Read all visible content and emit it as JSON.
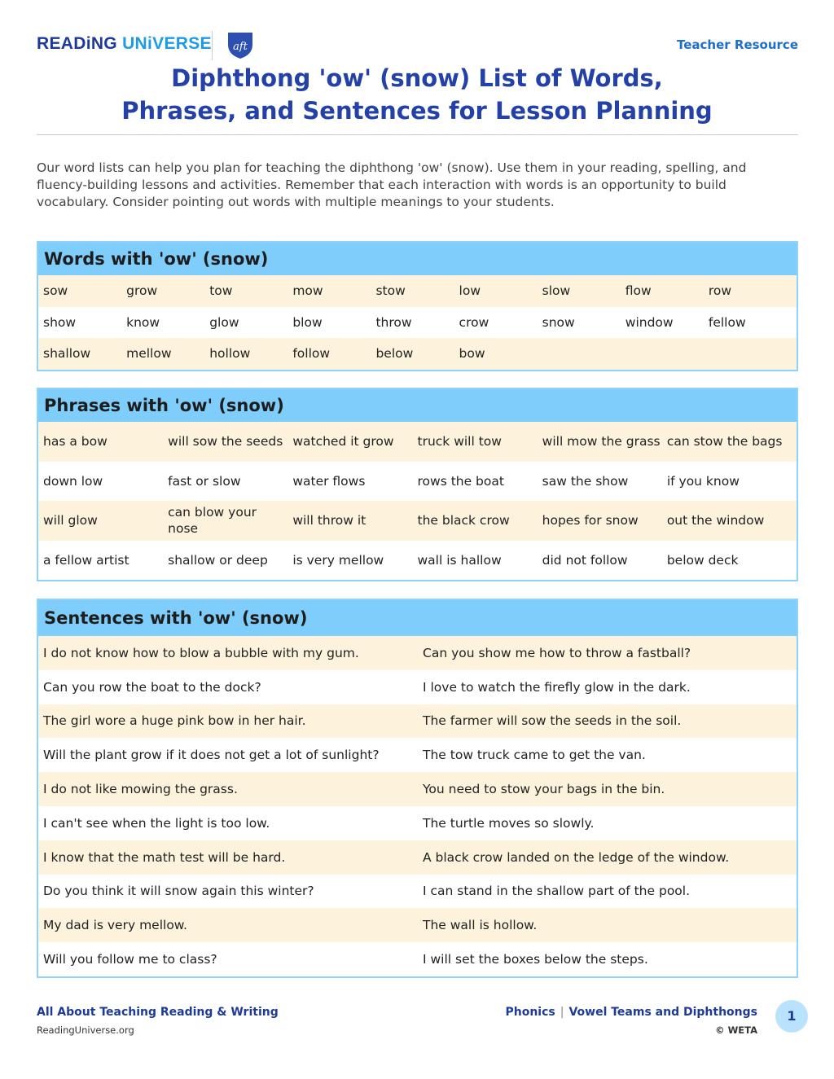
{
  "header": {
    "logo_part1": "READiNG",
    "logo_part2": "UNiVERSE",
    "partner_logo": "aft",
    "badge": "Teacher Resource",
    "title_line1": "Diphthong 'ow' (snow) List of Words,",
    "title_line2": "Phrases, and Sentences for Lesson Planning"
  },
  "intro": "Our word lists can help you plan for teaching the diphthong 'ow' (snow). Use them in your reading, spelling, and fluency-building lessons and activities. Remember that each interaction with words is an opportunity to build vocabulary. Consider pointing out words with multiple meanings to your students.",
  "colors": {
    "title": "#2341a7",
    "section_header": "#7fcdfb",
    "alt_row": "#fdf3dc"
  },
  "words": {
    "heading": "Words with 'ow' (snow)",
    "rows": [
      [
        "sow",
        "grow",
        "tow",
        "mow",
        "stow",
        "low",
        "slow",
        "flow",
        "row"
      ],
      [
        "show",
        "know",
        "glow",
        "blow",
        "throw",
        "crow",
        "snow",
        "window",
        "fellow"
      ],
      [
        "shallow",
        "mellow",
        "hollow",
        "follow",
        "below",
        "bow",
        "",
        "",
        ""
      ]
    ]
  },
  "phrases": {
    "heading": "Phrases with 'ow' (snow)",
    "rows": [
      [
        "has a bow",
        "will sow the seeds",
        "watched it grow",
        "truck will tow",
        "will mow the grass",
        "can stow the bags"
      ],
      [
        "down low",
        "fast or slow",
        "water flows",
        "rows the boat",
        "saw the show",
        "if you know"
      ],
      [
        "will glow",
        "can blow your nose",
        "will throw it",
        "the black crow",
        "hopes for snow",
        "out the window"
      ],
      [
        "a fellow artist",
        "shallow or deep",
        "is very mellow",
        "wall is hallow",
        "did not follow",
        "below deck"
      ]
    ]
  },
  "sentences": {
    "heading": "Sentences with 'ow' (snow)",
    "rows": [
      [
        "I do not know how to blow a bubble with my gum.",
        "Can you show me how to throw a fastball?"
      ],
      [
        "Can you row the boat to the dock?",
        "I love to watch the firefly glow in the dark."
      ],
      [
        "The girl wore a huge pink bow in her hair.",
        "The farmer will sow the seeds in the soil."
      ],
      [
        "Will the plant grow if it does not get a lot of sunlight?",
        "The tow truck came to get the van."
      ],
      [
        "I do not like mowing the grass.",
        "You need to stow your bags in the bin."
      ],
      [
        "I can't see when the light is too low.",
        "The turtle moves so slowly."
      ],
      [
        "I know that the math test will be hard.",
        "A black crow landed on the ledge of the window."
      ],
      [
        "Do you think it will snow again this winter?",
        "I can stand in the shallow part of the pool."
      ],
      [
        "My dad is very mellow.",
        "The wall is hollow."
      ],
      [
        "Will you follow me to class?",
        "I will set the boxes below the steps."
      ]
    ]
  },
  "footer": {
    "left_title": "All About Teaching Reading & Writing",
    "left_url": "ReadingUniverse.org",
    "crumb1": "Phonics",
    "crumb_sep": "|",
    "crumb2": "Vowel Teams and Diphthongs",
    "copyright": "© WETA",
    "page": "1"
  }
}
